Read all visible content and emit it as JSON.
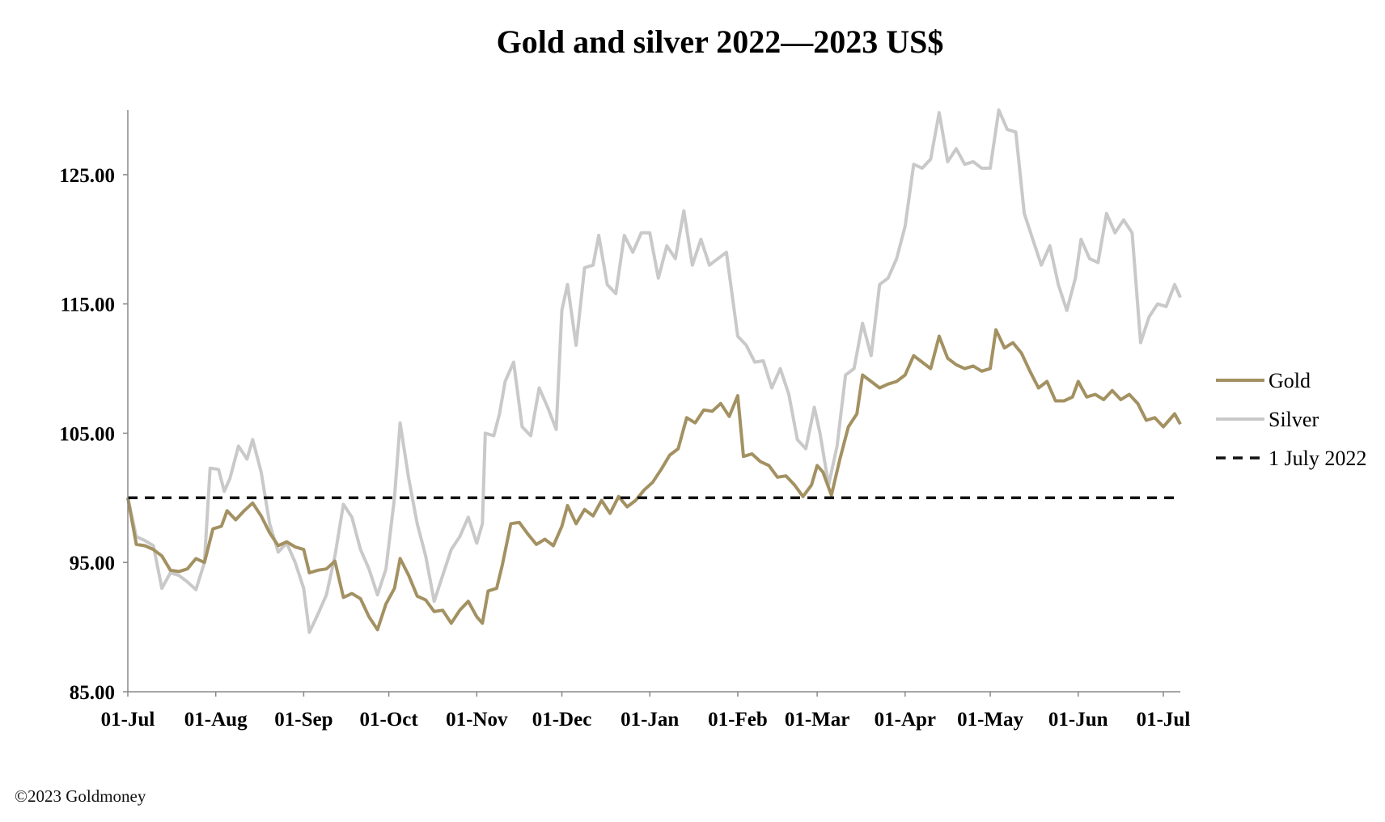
{
  "chart_data": {
    "type": "line",
    "title": "Gold and silver 2022—2023  US$",
    "xlabel": "",
    "ylabel": "",
    "ylim": [
      85,
      130
    ],
    "y_ticks": [
      "85.00",
      "95.00",
      "105.00",
      "115.00",
      "125.00"
    ],
    "x_range": [
      "2022-07-01",
      "2023-07-07"
    ],
    "x_ticks": [
      {
        "date": "2022-07-01",
        "label": "01-Jul"
      },
      {
        "date": "2022-08-01",
        "label": "01-Aug"
      },
      {
        "date": "2022-09-01",
        "label": "01-Sep"
      },
      {
        "date": "2022-10-01",
        "label": "01-Oct"
      },
      {
        "date": "2022-11-01",
        "label": "01-Nov"
      },
      {
        "date": "2022-12-01",
        "label": "01-Dec"
      },
      {
        "date": "2023-01-01",
        "label": "01-Jan"
      },
      {
        "date": "2023-02-01",
        "label": "01-Feb"
      },
      {
        "date": "2023-03-01",
        "label": "01-Mar"
      },
      {
        "date": "2023-04-01",
        "label": "01-Apr"
      },
      {
        "date": "2023-05-01",
        "label": "01-May"
      },
      {
        "date": "2023-06-01",
        "label": "01-Jun"
      },
      {
        "date": "2023-07-01",
        "label": "01-Jul"
      }
    ],
    "legend_position": "right",
    "series": [
      {
        "name": "Gold",
        "color": "#a39162",
        "dash": "solid",
        "points": [
          [
            "2022-07-01",
            100.0
          ],
          [
            "2022-07-04",
            96.4
          ],
          [
            "2022-07-07",
            96.3
          ],
          [
            "2022-07-10",
            96.0
          ],
          [
            "2022-07-13",
            95.5
          ],
          [
            "2022-07-16",
            94.4
          ],
          [
            "2022-07-19",
            94.3
          ],
          [
            "2022-07-22",
            94.5
          ],
          [
            "2022-07-25",
            95.3
          ],
          [
            "2022-07-28",
            95.0
          ],
          [
            "2022-07-31",
            97.6
          ],
          [
            "2022-08-03",
            97.8
          ],
          [
            "2022-08-05",
            99.0
          ],
          [
            "2022-08-08",
            98.3
          ],
          [
            "2022-08-11",
            99.0
          ],
          [
            "2022-08-14",
            99.6
          ],
          [
            "2022-08-17",
            98.6
          ],
          [
            "2022-08-20",
            97.3
          ],
          [
            "2022-08-23",
            96.3
          ],
          [
            "2022-08-26",
            96.6
          ],
          [
            "2022-08-29",
            96.2
          ],
          [
            "2022-09-01",
            96.0
          ],
          [
            "2022-09-03",
            94.2
          ],
          [
            "2022-09-06",
            94.4
          ],
          [
            "2022-09-09",
            94.5
          ],
          [
            "2022-09-12",
            95.1
          ],
          [
            "2022-09-15",
            92.3
          ],
          [
            "2022-09-18",
            92.6
          ],
          [
            "2022-09-21",
            92.2
          ],
          [
            "2022-09-24",
            90.8
          ],
          [
            "2022-09-27",
            89.8
          ],
          [
            "2022-09-30",
            91.8
          ],
          [
            "2022-10-03",
            93.0
          ],
          [
            "2022-10-05",
            95.3
          ],
          [
            "2022-10-08",
            94.0
          ],
          [
            "2022-10-11",
            92.4
          ],
          [
            "2022-10-14",
            92.1
          ],
          [
            "2022-10-17",
            91.2
          ],
          [
            "2022-10-20",
            91.3
          ],
          [
            "2022-10-23",
            90.3
          ],
          [
            "2022-10-26",
            91.3
          ],
          [
            "2022-10-29",
            92.0
          ],
          [
            "2022-11-01",
            90.8
          ],
          [
            "2022-11-03",
            90.3
          ],
          [
            "2022-11-05",
            92.8
          ],
          [
            "2022-11-08",
            93.0
          ],
          [
            "2022-11-10",
            94.8
          ],
          [
            "2022-11-13",
            98.0
          ],
          [
            "2022-11-16",
            98.1
          ],
          [
            "2022-11-19",
            97.2
          ],
          [
            "2022-11-22",
            96.4
          ],
          [
            "2022-11-25",
            96.8
          ],
          [
            "2022-11-28",
            96.3
          ],
          [
            "2022-12-01",
            97.8
          ],
          [
            "2022-12-03",
            99.4
          ],
          [
            "2022-12-06",
            98.0
          ],
          [
            "2022-12-09",
            99.1
          ],
          [
            "2022-12-12",
            98.6
          ],
          [
            "2022-12-15",
            99.8
          ],
          [
            "2022-12-18",
            98.8
          ],
          [
            "2022-12-21",
            100.1
          ],
          [
            "2022-12-24",
            99.3
          ],
          [
            "2022-12-27",
            99.8
          ],
          [
            "2022-12-30",
            100.6
          ],
          [
            "2023-01-02",
            101.2
          ],
          [
            "2023-01-05",
            102.2
          ],
          [
            "2023-01-08",
            103.3
          ],
          [
            "2023-01-11",
            103.8
          ],
          [
            "2023-01-14",
            106.2
          ],
          [
            "2023-01-17",
            105.8
          ],
          [
            "2023-01-20",
            106.8
          ],
          [
            "2023-01-23",
            106.7
          ],
          [
            "2023-01-26",
            107.3
          ],
          [
            "2023-01-29",
            106.3
          ],
          [
            "2023-02-01",
            107.9
          ],
          [
            "2023-02-03",
            103.2
          ],
          [
            "2023-02-06",
            103.4
          ],
          [
            "2023-02-09",
            102.8
          ],
          [
            "2023-02-12",
            102.5
          ],
          [
            "2023-02-15",
            101.6
          ],
          [
            "2023-02-18",
            101.7
          ],
          [
            "2023-02-21",
            101.0
          ],
          [
            "2023-02-24",
            100.1
          ],
          [
            "2023-02-27",
            101.0
          ],
          [
            "2023-03-01",
            102.5
          ],
          [
            "2023-03-03",
            102.0
          ],
          [
            "2023-03-06",
            100.2
          ],
          [
            "2023-03-09",
            103.0
          ],
          [
            "2023-03-12",
            105.5
          ],
          [
            "2023-03-15",
            106.5
          ],
          [
            "2023-03-17",
            109.5
          ],
          [
            "2023-03-20",
            109.0
          ],
          [
            "2023-03-23",
            108.5
          ],
          [
            "2023-03-26",
            108.8
          ],
          [
            "2023-03-29",
            109.0
          ],
          [
            "2023-04-01",
            109.5
          ],
          [
            "2023-04-04",
            111.0
          ],
          [
            "2023-04-07",
            110.5
          ],
          [
            "2023-04-10",
            110.0
          ],
          [
            "2023-04-13",
            112.5
          ],
          [
            "2023-04-16",
            110.8
          ],
          [
            "2023-04-19",
            110.3
          ],
          [
            "2023-04-22",
            110.0
          ],
          [
            "2023-04-25",
            110.2
          ],
          [
            "2023-04-28",
            109.8
          ],
          [
            "2023-05-01",
            110.0
          ],
          [
            "2023-05-03",
            113.0
          ],
          [
            "2023-05-06",
            111.6
          ],
          [
            "2023-05-09",
            112.0
          ],
          [
            "2023-05-12",
            111.2
          ],
          [
            "2023-05-15",
            109.8
          ],
          [
            "2023-05-18",
            108.5
          ],
          [
            "2023-05-21",
            109.0
          ],
          [
            "2023-05-24",
            107.5
          ],
          [
            "2023-05-27",
            107.5
          ],
          [
            "2023-05-30",
            107.8
          ],
          [
            "2023-06-01",
            109.0
          ],
          [
            "2023-06-04",
            107.8
          ],
          [
            "2023-06-07",
            108.0
          ],
          [
            "2023-06-10",
            107.6
          ],
          [
            "2023-06-13",
            108.3
          ],
          [
            "2023-06-16",
            107.6
          ],
          [
            "2023-06-19",
            108.0
          ],
          [
            "2023-06-22",
            107.3
          ],
          [
            "2023-06-25",
            106.0
          ],
          [
            "2023-06-28",
            106.2
          ],
          [
            "2023-07-01",
            105.5
          ],
          [
            "2023-07-03",
            106.0
          ],
          [
            "2023-07-05",
            106.5
          ],
          [
            "2023-07-07",
            105.7
          ]
        ]
      },
      {
        "name": "Silver",
        "color": "#c9c9c9",
        "dash": "solid",
        "points": [
          [
            "2022-07-01",
            100.0
          ],
          [
            "2022-07-04",
            97.0
          ],
          [
            "2022-07-07",
            96.7
          ],
          [
            "2022-07-10",
            96.3
          ],
          [
            "2022-07-13",
            93.0
          ],
          [
            "2022-07-16",
            94.2
          ],
          [
            "2022-07-19",
            94.0
          ],
          [
            "2022-07-22",
            93.5
          ],
          [
            "2022-07-25",
            92.9
          ],
          [
            "2022-07-28",
            95.0
          ],
          [
            "2022-07-30",
            102.3
          ],
          [
            "2022-08-02",
            102.2
          ],
          [
            "2022-08-04",
            100.5
          ],
          [
            "2022-08-06",
            101.5
          ],
          [
            "2022-08-09",
            104.0
          ],
          [
            "2022-08-12",
            103.0
          ],
          [
            "2022-08-14",
            104.5
          ],
          [
            "2022-08-17",
            102.0
          ],
          [
            "2022-08-20",
            98.0
          ],
          [
            "2022-08-23",
            95.8
          ],
          [
            "2022-08-26",
            96.5
          ],
          [
            "2022-08-29",
            95.0
          ],
          [
            "2022-09-01",
            93.0
          ],
          [
            "2022-09-03",
            89.6
          ],
          [
            "2022-09-06",
            91.0
          ],
          [
            "2022-09-09",
            92.5
          ],
          [
            "2022-09-12",
            95.5
          ],
          [
            "2022-09-15",
            99.5
          ],
          [
            "2022-09-18",
            98.5
          ],
          [
            "2022-09-21",
            96.0
          ],
          [
            "2022-09-24",
            94.5
          ],
          [
            "2022-09-27",
            92.5
          ],
          [
            "2022-09-30",
            94.5
          ],
          [
            "2022-10-03",
            100.0
          ],
          [
            "2022-10-05",
            105.8
          ],
          [
            "2022-10-08",
            101.5
          ],
          [
            "2022-10-11",
            98.0
          ],
          [
            "2022-10-14",
            95.5
          ],
          [
            "2022-10-17",
            92.0
          ],
          [
            "2022-10-20",
            94.0
          ],
          [
            "2022-10-23",
            96.0
          ],
          [
            "2022-10-26",
            97.0
          ],
          [
            "2022-10-29",
            98.5
          ],
          [
            "2022-11-01",
            96.5
          ],
          [
            "2022-11-03",
            98.0
          ],
          [
            "2022-11-04",
            105.0
          ],
          [
            "2022-11-07",
            104.8
          ],
          [
            "2022-11-09",
            106.5
          ],
          [
            "2022-11-11",
            109.0
          ],
          [
            "2022-11-14",
            110.5
          ],
          [
            "2022-11-17",
            105.5
          ],
          [
            "2022-11-20",
            104.8
          ],
          [
            "2022-11-23",
            108.5
          ],
          [
            "2022-11-26",
            107.0
          ],
          [
            "2022-11-29",
            105.3
          ],
          [
            "2022-12-01",
            114.5
          ],
          [
            "2022-12-03",
            116.5
          ],
          [
            "2022-12-06",
            111.8
          ],
          [
            "2022-12-09",
            117.8
          ],
          [
            "2022-12-12",
            118.0
          ],
          [
            "2022-12-14",
            120.3
          ],
          [
            "2022-12-17",
            116.5
          ],
          [
            "2022-12-20",
            115.8
          ],
          [
            "2022-12-23",
            120.3
          ],
          [
            "2022-12-26",
            119.0
          ],
          [
            "2022-12-29",
            120.5
          ],
          [
            "2023-01-01",
            120.5
          ],
          [
            "2023-01-04",
            117.0
          ],
          [
            "2023-01-07",
            119.5
          ],
          [
            "2023-01-10",
            118.5
          ],
          [
            "2023-01-13",
            122.2
          ],
          [
            "2023-01-16",
            118.0
          ],
          [
            "2023-01-19",
            120.0
          ],
          [
            "2023-01-22",
            118.0
          ],
          [
            "2023-01-25",
            118.5
          ],
          [
            "2023-01-28",
            119.0
          ],
          [
            "2023-02-01",
            112.5
          ],
          [
            "2023-02-04",
            111.8
          ],
          [
            "2023-02-07",
            110.5
          ],
          [
            "2023-02-10",
            110.6
          ],
          [
            "2023-02-13",
            108.5
          ],
          [
            "2023-02-16",
            110.0
          ],
          [
            "2023-02-19",
            108.0
          ],
          [
            "2023-02-22",
            104.5
          ],
          [
            "2023-02-25",
            103.8
          ],
          [
            "2023-02-28",
            107.0
          ],
          [
            "2023-03-02",
            105.0
          ],
          [
            "2023-03-05",
            101.0
          ],
          [
            "2023-03-08",
            104.0
          ],
          [
            "2023-03-11",
            109.5
          ],
          [
            "2023-03-14",
            110.0
          ],
          [
            "2023-03-17",
            113.5
          ],
          [
            "2023-03-20",
            111.0
          ],
          [
            "2023-03-23",
            116.5
          ],
          [
            "2023-03-26",
            117.0
          ],
          [
            "2023-03-29",
            118.5
          ],
          [
            "2023-04-01",
            121.0
          ],
          [
            "2023-04-04",
            125.8
          ],
          [
            "2023-04-07",
            125.5
          ],
          [
            "2023-04-10",
            126.2
          ],
          [
            "2023-04-13",
            129.8
          ],
          [
            "2023-04-16",
            126.0
          ],
          [
            "2023-04-19",
            127.0
          ],
          [
            "2023-04-22",
            125.8
          ],
          [
            "2023-04-25",
            126.0
          ],
          [
            "2023-04-28",
            125.5
          ],
          [
            "2023-05-01",
            125.5
          ],
          [
            "2023-05-04",
            130.0
          ],
          [
            "2023-05-07",
            128.5
          ],
          [
            "2023-05-10",
            128.3
          ],
          [
            "2023-05-13",
            122.0
          ],
          [
            "2023-05-16",
            120.0
          ],
          [
            "2023-05-19",
            118.0
          ],
          [
            "2023-05-22",
            119.5
          ],
          [
            "2023-05-25",
            116.5
          ],
          [
            "2023-05-28",
            114.5
          ],
          [
            "2023-05-31",
            117.0
          ],
          [
            "2023-06-02",
            120.0
          ],
          [
            "2023-06-05",
            118.5
          ],
          [
            "2023-06-08",
            118.2
          ],
          [
            "2023-06-11",
            122.0
          ],
          [
            "2023-06-14",
            120.5
          ],
          [
            "2023-06-17",
            121.5
          ],
          [
            "2023-06-20",
            120.5
          ],
          [
            "2023-06-23",
            112.0
          ],
          [
            "2023-06-26",
            114.0
          ],
          [
            "2023-06-29",
            115.0
          ],
          [
            "2023-07-02",
            114.8
          ],
          [
            "2023-07-05",
            116.5
          ],
          [
            "2023-07-07",
            115.5
          ]
        ]
      },
      {
        "name": "1 July 2022",
        "color": "#111111",
        "dash": "dashed",
        "points": [
          [
            "2022-07-01",
            100.0
          ],
          [
            "2023-07-07",
            100.0
          ]
        ]
      }
    ]
  },
  "footer": {
    "copyright": "©2023 Goldmoney"
  }
}
